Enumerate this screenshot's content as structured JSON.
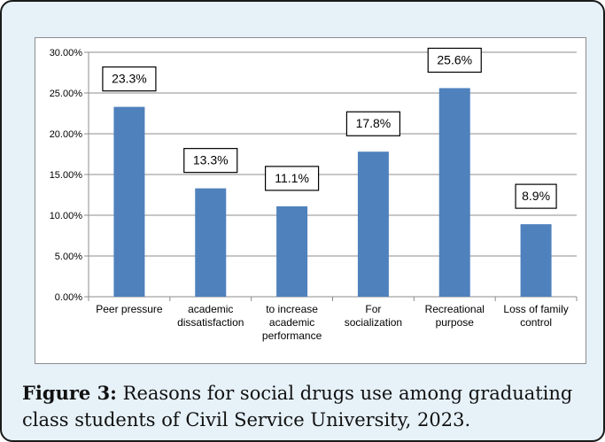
{
  "chart_data": {
    "type": "bar",
    "title": "",
    "xlabel": "",
    "ylabel": "",
    "ylim": [
      0,
      30
    ],
    "yticks": [
      "0.00%",
      "5.00%",
      "10.00%",
      "15.00%",
      "20.00%",
      "25.00%",
      "30.00%"
    ],
    "categories": [
      [
        "Peer pressure"
      ],
      [
        "academic",
        "dissatisfaction"
      ],
      [
        "to increase",
        "academic",
        "performance"
      ],
      [
        "For",
        "socialization"
      ],
      [
        "Recreational",
        "purpose"
      ],
      [
        "Loss of family",
        "control"
      ]
    ],
    "values": [
      23.3,
      13.3,
      11.1,
      17.8,
      25.6,
      8.9
    ],
    "data_labels": [
      "23.3%",
      "13.3%",
      "11.1%",
      "17.8%",
      "25.6%",
      "8.9%"
    ],
    "grid": true,
    "legend": "none",
    "bar_color": "#4f81bd"
  },
  "caption": {
    "label": "Figure 3:",
    "text": " Reasons for social drugs use among graduating class students of Civil Service University, 2023."
  }
}
